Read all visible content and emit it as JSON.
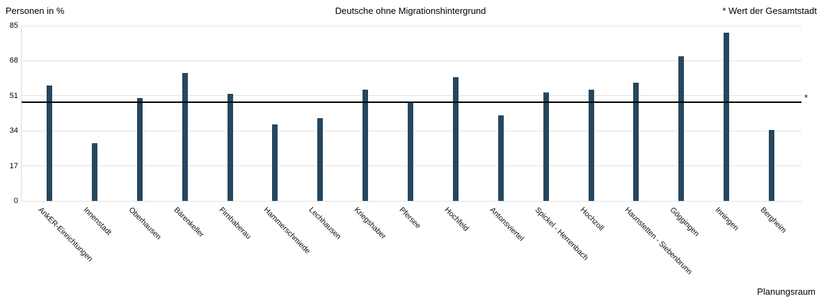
{
  "chart_data": {
    "type": "bar",
    "title": "Deutsche ohne Migrationshintergrund",
    "ylabel": "Personen in %",
    "xlabel": "Planungsraum",
    "ylim": [
      0,
      85
    ],
    "yticks": [
      0,
      17,
      34,
      51,
      68,
      85
    ],
    "grid": true,
    "legend": "none",
    "bar_color": "#26475e",
    "categories": [
      "AnkER-Einrichtungen",
      "Innenstadt",
      "Oberhausen",
      "Bärenkeller",
      "Firnhaberau",
      "Hammerschmiede",
      "Lechhausen",
      "Kriegshaber",
      "Pfersee",
      "Hochfeld",
      "Antonsviertel",
      "Spickel - Herrenbach",
      "Hochzoll",
      "Haunstetten - Siebenbrunn",
      "Göggingen",
      "Inningen",
      "Bergheim"
    ],
    "values": [
      56,
      28,
      50,
      62,
      52,
      37,
      40,
      54,
      48,
      60,
      41.5,
      52.5,
      54,
      57.5,
      70,
      81.5,
      34.5
    ],
    "reference_line": {
      "value": 48,
      "marker": "*",
      "note": "* Wert der Gesamtstadt",
      "color": "#000000"
    }
  }
}
